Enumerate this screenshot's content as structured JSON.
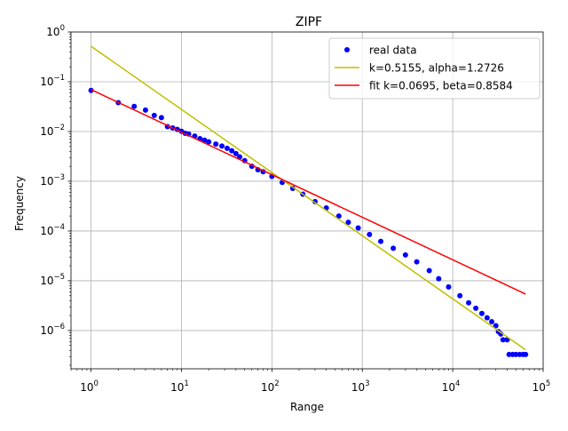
{
  "chart_data": {
    "type": "line",
    "title": "ZIPF",
    "xlabel": "Range",
    "ylabel": "Frequency",
    "x_scale": "log",
    "y_scale": "log",
    "xlim": [
      0.6,
      100000
    ],
    "ylim": [
      1.7e-07,
      1
    ],
    "grid": true,
    "legend_position": "top-right",
    "x_ticks": [
      {
        "value": 1,
        "base": "10",
        "exp": "0"
      },
      {
        "value": 10,
        "base": "10",
        "exp": "1"
      },
      {
        "value": 100,
        "base": "10",
        "exp": "2"
      },
      {
        "value": 1000,
        "base": "10",
        "exp": "3"
      },
      {
        "value": 10000,
        "base": "10",
        "exp": "4"
      },
      {
        "value": 100000,
        "base": "10",
        "exp": "5"
      }
    ],
    "y_ticks": [
      {
        "value": 1,
        "base": "10",
        "exp": "0"
      },
      {
        "value": 0.1,
        "base": "10",
        "exp": "−1"
      },
      {
        "value": 0.01,
        "base": "10",
        "exp": "−2"
      },
      {
        "value": 0.001,
        "base": "10",
        "exp": "−3"
      },
      {
        "value": 0.0001,
        "base": "10",
        "exp": "−4"
      },
      {
        "value": 1e-05,
        "base": "10",
        "exp": "−5"
      },
      {
        "value": 1e-06,
        "base": "10",
        "exp": "−6"
      }
    ],
    "series": [
      {
        "name": "real data",
        "kind": "scatter",
        "color": "#0000ff",
        "points": [
          [
            1,
            0.067
          ],
          [
            2,
            0.038
          ],
          [
            3,
            0.032
          ],
          [
            4,
            0.027
          ],
          [
            5,
            0.021
          ],
          [
            6,
            0.019
          ],
          [
            7,
            0.0125
          ],
          [
            8,
            0.0118
          ],
          [
            9,
            0.011
          ],
          [
            10,
            0.0101
          ],
          [
            11,
            0.0092
          ],
          [
            12,
            0.0089
          ],
          [
            14,
            0.0081
          ],
          [
            16,
            0.0072
          ],
          [
            18,
            0.0067
          ],
          [
            20,
            0.0062
          ],
          [
            24,
            0.0056
          ],
          [
            28,
            0.0051
          ],
          [
            32,
            0.0046
          ],
          [
            36,
            0.0041
          ],
          [
            40,
            0.0036
          ],
          [
            44,
            0.0031
          ],
          [
            50,
            0.0026
          ],
          [
            60,
            0.002
          ],
          [
            70,
            0.0017
          ],
          [
            80,
            0.00155
          ],
          [
            100,
            0.00125
          ],
          [
            130,
            0.00095
          ],
          [
            170,
            0.00072
          ],
          [
            220,
            0.00055
          ],
          [
            300,
            0.00039
          ],
          [
            400,
            0.00029
          ],
          [
            550,
            0.0002
          ],
          [
            700,
            0.00015
          ],
          [
            900,
            0.000115
          ],
          [
            1200,
            8.5e-05
          ],
          [
            1600,
            6.2e-05
          ],
          [
            2200,
            4.5e-05
          ],
          [
            3000,
            3.3e-05
          ],
          [
            4000,
            2.4e-05
          ],
          [
            5500,
            1.6e-05
          ],
          [
            7000,
            1.1e-05
          ],
          [
            9000,
            7.5e-06
          ],
          [
            12000,
            5e-06
          ],
          [
            15000,
            3.6e-06
          ],
          [
            18000,
            2.8e-06
          ],
          [
            21000,
            2.2e-06
          ],
          [
            24000,
            1.8e-06
          ],
          [
            27000,
            1.5e-06
          ],
          [
            30000,
            1.25e-06
          ],
          [
            32000,
            9.5e-07
          ],
          [
            34000,
            8.5e-07
          ],
          [
            36000,
            6.5e-07
          ],
          [
            40000,
            6.5e-07
          ],
          [
            42000,
            3.3e-07
          ],
          [
            46000,
            3.3e-07
          ],
          [
            50000,
            3.3e-07
          ],
          [
            55000,
            3.3e-07
          ],
          [
            60000,
            3.3e-07
          ],
          [
            64000,
            3.3e-07
          ]
        ]
      },
      {
        "name": "k=0.5155, alpha=1.2726",
        "kind": "line",
        "color": "#bfbf00",
        "points": [
          [
            1,
            0.5155
          ],
          [
            64000,
            4.1e-07
          ]
        ]
      },
      {
        "name": "fit k=0.0695, beta=0.8584",
        "kind": "line",
        "color": "#ff0000",
        "points": [
          [
            1,
            0.0695
          ],
          [
            64000,
            5.4e-06
          ]
        ]
      }
    ]
  }
}
